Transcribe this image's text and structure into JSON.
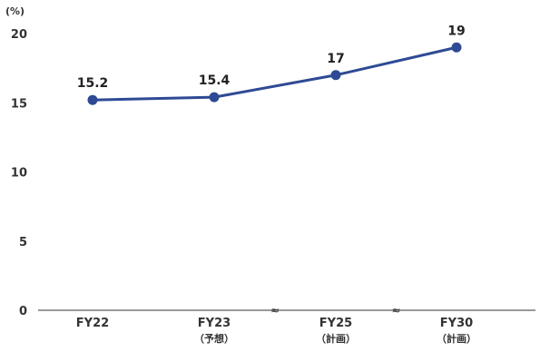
{
  "chart_data": {
    "type": "line",
    "unit_label": "(%)",
    "categories": [
      {
        "label": "FY22",
        "sublabel": ""
      },
      {
        "label": "FY23",
        "sublabel": "（予想）"
      },
      {
        "label": "FY25",
        "sublabel": "（計画）"
      },
      {
        "label": "FY30",
        "sublabel": "（計画）"
      }
    ],
    "series": [
      {
        "values": [
          15.2,
          15.4,
          17,
          19
        ],
        "labels": [
          "15.2",
          "15.4",
          "17",
          "19"
        ],
        "color": "#2e4a94"
      }
    ],
    "yticks": [
      "0",
      "5",
      "10",
      "15",
      "20"
    ],
    "ylim": [
      0,
      20
    ],
    "axis_break_marks": [
      "≈",
      "≈"
    ],
    "grid": false,
    "legend": "none"
  }
}
